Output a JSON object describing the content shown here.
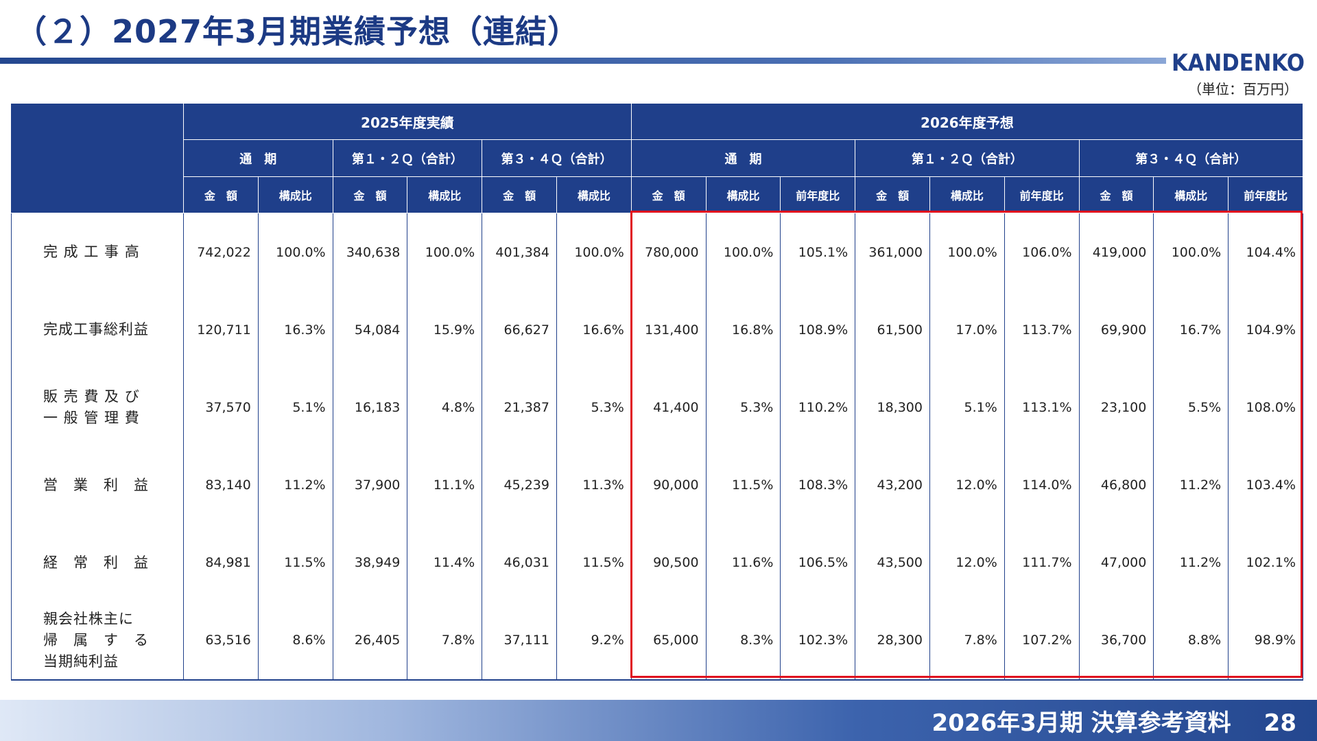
{
  "header": {
    "title": "（２）2027年3月期業績予想（連結）",
    "logo_text": "KANDENKO",
    "unit": "（単位：百万円）"
  },
  "table": {
    "groups": [
      "2025年度実績",
      "2026年度予想"
    ],
    "periods": [
      "通　期",
      "第１・２Ｑ（合計）",
      "第３・４Ｑ（合計）",
      "通　期",
      "第１・２Ｑ（合計）",
      "第３・４Ｑ（合計）"
    ],
    "columns": [
      "金　額",
      "構成比",
      "金　額",
      "構成比",
      "金　額",
      "構成比",
      "金　額",
      "構成比",
      "前年度比",
      "金　額",
      "構成比",
      "前年度比",
      "金　額",
      "構成比",
      "前年度比"
    ],
    "rows": [
      {
        "label": "完 成 工 事 高",
        "values": [
          "742,022",
          "100.0%",
          "340,638",
          "100.0%",
          "401,384",
          "100.0%",
          "780,000",
          "100.0%",
          "105.1%",
          "361,000",
          "100.0%",
          "106.0%",
          "419,000",
          "100.0%",
          "104.4%"
        ]
      },
      {
        "label": "完成工事総利益",
        "values": [
          "120,711",
          "16.3%",
          "54,084",
          "15.9%",
          "66,627",
          "16.6%",
          "131,400",
          "16.8%",
          "108.9%",
          "61,500",
          "17.0%",
          "113.7%",
          "69,900",
          "16.7%",
          "104.9%"
        ]
      },
      {
        "label": "販 売 費 及 び\n一 般 管 理 費",
        "values": [
          "37,570",
          "5.1%",
          "16,183",
          "4.8%",
          "21,387",
          "5.3%",
          "41,400",
          "5.3%",
          "110.2%",
          "18,300",
          "5.1%",
          "113.1%",
          "23,100",
          "5.5%",
          "108.0%"
        ]
      },
      {
        "label": "営　業　利　益",
        "values": [
          "83,140",
          "11.2%",
          "37,900",
          "11.1%",
          "45,239",
          "11.3%",
          "90,000",
          "11.5%",
          "108.3%",
          "43,200",
          "12.0%",
          "114.0%",
          "46,800",
          "11.2%",
          "103.4%"
        ]
      },
      {
        "label": "経　常　利　益",
        "values": [
          "84,981",
          "11.5%",
          "38,949",
          "11.4%",
          "46,031",
          "11.5%",
          "90,500",
          "11.6%",
          "106.5%",
          "43,500",
          "12.0%",
          "111.7%",
          "47,000",
          "11.2%",
          "102.1%"
        ]
      },
      {
        "label": "親会社株主に\n帰　属　す　る\n当期純利益",
        "values": [
          "63,516",
          "8.6%",
          "26,405",
          "7.8%",
          "37,111",
          "9.2%",
          "65,000",
          "8.3%",
          "102.3%",
          "28,300",
          "7.8%",
          "107.2%",
          "36,700",
          "8.8%",
          "98.9%"
        ]
      }
    ]
  },
  "footer": {
    "doc_title": "2026年3月期 決算参考資料",
    "page": "28"
  },
  "colors": {
    "brand_navy": "#1f3f8a",
    "highlight_red": "#e0121e"
  }
}
